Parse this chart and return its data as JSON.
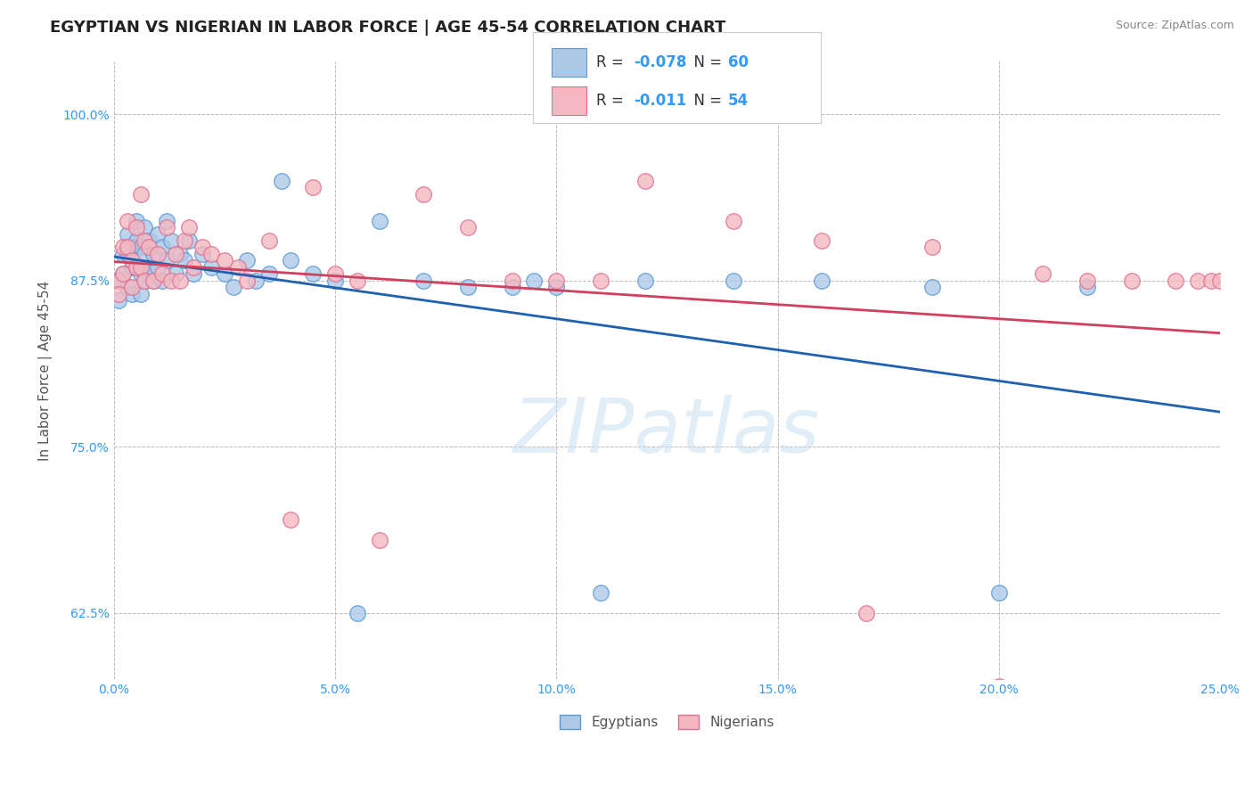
{
  "title": "EGYPTIAN VS NIGERIAN IN LABOR FORCE | AGE 45-54 CORRELATION CHART",
  "source_text": "Source: ZipAtlas.com",
  "ylabel": "In Labor Force | Age 45-54",
  "xlim": [
    0.0,
    0.25
  ],
  "ylim": [
    0.575,
    1.04
  ],
  "xticks": [
    0.0,
    0.05,
    0.1,
    0.15,
    0.2,
    0.25
  ],
  "xtick_labels": [
    "0.0%",
    "5.0%",
    "10.0%",
    "15.0%",
    "20.0%",
    "25.0%"
  ],
  "yticks": [
    0.625,
    0.75,
    0.875,
    1.0
  ],
  "ytick_labels": [
    "62.5%",
    "75.0%",
    "87.5%",
    "100.0%"
  ],
  "legend_r_blue": "-0.078",
  "legend_n_blue": "60",
  "legend_r_pink": "-0.011",
  "legend_n_pink": "54",
  "blue_color": "#aec8e8",
  "blue_edge_color": "#5b9bd5",
  "pink_color": "#f4b8c1",
  "pink_edge_color": "#e07090",
  "blue_line_color": "#2060b0",
  "pink_line_color": "#d04060",
  "watermark": "ZIPatlas",
  "grid_color": "#bbbbbb",
  "background_color": "#ffffff",
  "title_fontsize": 13,
  "axis_label_fontsize": 11,
  "tick_fontsize": 10,
  "legend_fontsize": 12,
  "blue_x": [
    0.001,
    0.001,
    0.002,
    0.002,
    0.003,
    0.003,
    0.003,
    0.004,
    0.004,
    0.004,
    0.005,
    0.005,
    0.005,
    0.006,
    0.006,
    0.006,
    0.007,
    0.007,
    0.007,
    0.008,
    0.008,
    0.009,
    0.009,
    0.01,
    0.01,
    0.011,
    0.011,
    0.012,
    0.012,
    0.013,
    0.014,
    0.015,
    0.016,
    0.017,
    0.018,
    0.02,
    0.022,
    0.025,
    0.027,
    0.03,
    0.032,
    0.035,
    0.038,
    0.04,
    0.045,
    0.05,
    0.055,
    0.06,
    0.07,
    0.08,
    0.09,
    0.095,
    0.1,
    0.11,
    0.12,
    0.14,
    0.16,
    0.185,
    0.2,
    0.22
  ],
  "blue_y": [
    0.875,
    0.86,
    0.895,
    0.88,
    0.91,
    0.895,
    0.87,
    0.9,
    0.885,
    0.865,
    0.92,
    0.905,
    0.885,
    0.9,
    0.88,
    0.865,
    0.915,
    0.895,
    0.875,
    0.905,
    0.885,
    0.895,
    0.875,
    0.91,
    0.885,
    0.9,
    0.875,
    0.92,
    0.89,
    0.905,
    0.88,
    0.895,
    0.89,
    0.905,
    0.88,
    0.895,
    0.885,
    0.88,
    0.87,
    0.89,
    0.875,
    0.88,
    0.95,
    0.89,
    0.88,
    0.875,
    0.625,
    0.92,
    0.875,
    0.87,
    0.87,
    0.875,
    0.87,
    0.64,
    0.875,
    0.875,
    0.875,
    0.87,
    0.64,
    0.87
  ],
  "pink_x": [
    0.001,
    0.001,
    0.002,
    0.002,
    0.003,
    0.003,
    0.004,
    0.004,
    0.005,
    0.005,
    0.006,
    0.006,
    0.007,
    0.007,
    0.008,
    0.009,
    0.01,
    0.011,
    0.012,
    0.013,
    0.014,
    0.015,
    0.016,
    0.017,
    0.018,
    0.02,
    0.022,
    0.025,
    0.028,
    0.03,
    0.035,
    0.04,
    0.045,
    0.05,
    0.055,
    0.06,
    0.07,
    0.08,
    0.09,
    0.1,
    0.11,
    0.12,
    0.14,
    0.16,
    0.17,
    0.185,
    0.2,
    0.21,
    0.22,
    0.23,
    0.24,
    0.245,
    0.248,
    0.25
  ],
  "pink_y": [
    0.875,
    0.865,
    0.9,
    0.88,
    0.92,
    0.9,
    0.89,
    0.87,
    0.915,
    0.885,
    0.94,
    0.885,
    0.905,
    0.875,
    0.9,
    0.875,
    0.895,
    0.88,
    0.915,
    0.875,
    0.895,
    0.875,
    0.905,
    0.915,
    0.885,
    0.9,
    0.895,
    0.89,
    0.885,
    0.875,
    0.905,
    0.695,
    0.945,
    0.88,
    0.875,
    0.68,
    0.94,
    0.915,
    0.875,
    0.875,
    0.875,
    0.95,
    0.92,
    0.905,
    0.625,
    0.9,
    0.57,
    0.88,
    0.875,
    0.875,
    0.875,
    0.875,
    0.875,
    0.875
  ]
}
